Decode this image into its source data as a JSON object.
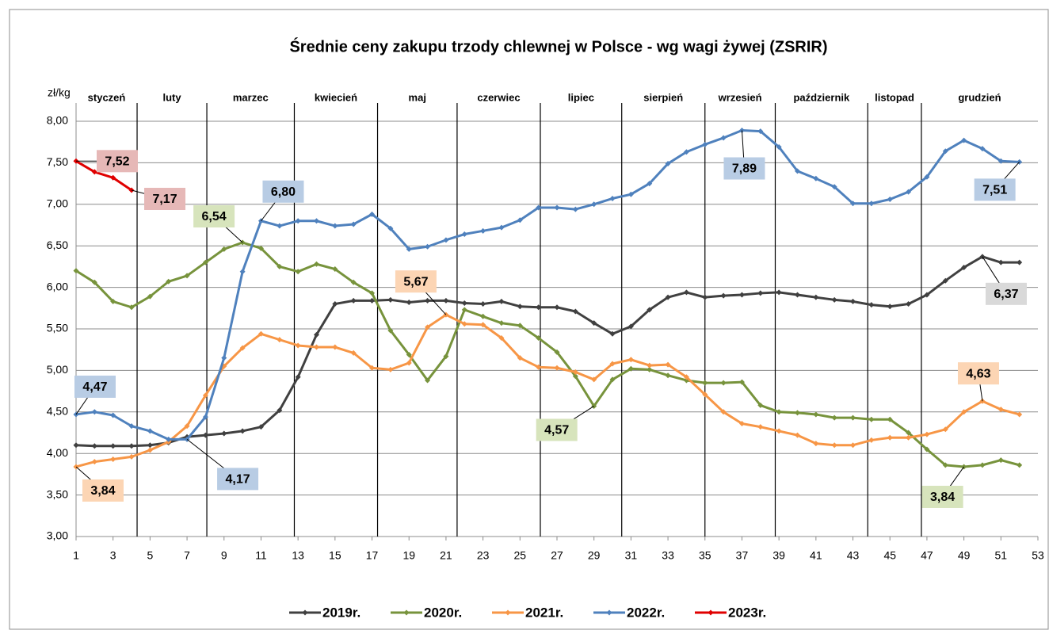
{
  "chart_data": {
    "type": "line",
    "title": "Średnie ceny zakupu trzody chlewnej w Polsce - wg wagi żywej (ZSRIR)",
    "y_label": "zł/kg",
    "months": [
      "styczeń",
      "luty",
      "marzec",
      "kwiecień",
      "maj",
      "czerwiec",
      "lipiec",
      "sierpień",
      "wrzesień",
      "październik",
      "listopad",
      "grudzień"
    ],
    "month_separators": [
      4.3,
      8.07,
      12.8,
      17.3,
      21.6,
      26.1,
      30.5,
      35.0,
      38.8,
      43.8,
      46.7
    ],
    "x": [
      1,
      2,
      3,
      4,
      5,
      6,
      7,
      8,
      9,
      10,
      11,
      12,
      13,
      14,
      15,
      16,
      17,
      18,
      19,
      20,
      21,
      22,
      23,
      24,
      25,
      26,
      27,
      28,
      29,
      30,
      31,
      32,
      33,
      34,
      35,
      36,
      37,
      38,
      39,
      40,
      41,
      42,
      43,
      44,
      45,
      46,
      47,
      48,
      49,
      50,
      51,
      52
    ],
    "xlim": [
      1,
      53
    ],
    "xticks": [
      1,
      3,
      5,
      7,
      9,
      11,
      13,
      15,
      17,
      19,
      21,
      23,
      25,
      27,
      29,
      31,
      33,
      35,
      37,
      39,
      41,
      43,
      45,
      47,
      49,
      51,
      53
    ],
    "ylim": [
      3,
      8
    ],
    "yticks": [
      {
        "value": 3,
        "label": "3,00"
      },
      {
        "value": 3.5,
        "label": "3,50"
      },
      {
        "value": 4,
        "label": "4,00"
      },
      {
        "value": 4.5,
        "label": "4,50"
      },
      {
        "value": 5,
        "label": "5,00"
      },
      {
        "value": 5.5,
        "label": "5,50"
      },
      {
        "value": 6,
        "label": "6,00"
      },
      {
        "value": 6.5,
        "label": "6,50"
      },
      {
        "value": 7,
        "label": "7,00"
      },
      {
        "value": 7.5,
        "label": "7,50"
      },
      {
        "value": 8,
        "label": "8,00"
      }
    ],
    "grid": true,
    "series": [
      {
        "name": "2019r.",
        "color": "#404040",
        "label_color": "#d9d9d9",
        "values": [
          4.1,
          4.09,
          4.09,
          4.09,
          4.1,
          4.13,
          4.2,
          4.22,
          4.24,
          4.27,
          4.32,
          4.52,
          4.92,
          5.43,
          5.8,
          5.84,
          5.84,
          5.85,
          5.82,
          5.84,
          5.84,
          5.81,
          5.8,
          5.83,
          5.77,
          5.76,
          5.76,
          5.71,
          5.57,
          5.44,
          5.53,
          5.73,
          5.88,
          5.94,
          5.88,
          5.9,
          5.91,
          5.93,
          5.94,
          5.91,
          5.88,
          5.85,
          5.83,
          5.79,
          5.77,
          5.8,
          5.91,
          6.08,
          6.24,
          6.37,
          6.3,
          6.3
        ],
        "value_labels": [
          null,
          null,
          null,
          null,
          null,
          null,
          null,
          null,
          null,
          null,
          null,
          null,
          null,
          null,
          null,
          null,
          null,
          null,
          null,
          null,
          null,
          null,
          null,
          null,
          null,
          null,
          null,
          null,
          null,
          null,
          null,
          null,
          null,
          null,
          null,
          null,
          null,
          null,
          null,
          null,
          null,
          null,
          null,
          null,
          null,
          null,
          null,
          null,
          null,
          "6,37",
          null,
          null
        ]
      },
      {
        "name": "2020r.",
        "color": "#77933c",
        "label_color": "#d7e4bc",
        "values": [
          6.2,
          6.06,
          5.83,
          5.76,
          5.89,
          6.07,
          6.14,
          6.3,
          6.46,
          6.54,
          6.47,
          6.25,
          6.19,
          6.28,
          6.22,
          6.06,
          5.93,
          5.48,
          5.19,
          4.88,
          5.17,
          5.73,
          5.65,
          5.57,
          5.54,
          5.39,
          5.22,
          4.93,
          4.57,
          4.89,
          5.02,
          5.01,
          4.94,
          4.88,
          4.85,
          4.85,
          4.86,
          4.58,
          4.5,
          4.49,
          4.47,
          4.43,
          4.43,
          4.41,
          4.41,
          4.25,
          4.05,
          3.86,
          3.84,
          3.86,
          3.92,
          3.86
        ],
        "value_labels": [
          null,
          null,
          null,
          null,
          null,
          null,
          null,
          null,
          null,
          "6,54",
          null,
          null,
          null,
          null,
          null,
          null,
          null,
          null,
          null,
          null,
          null,
          null,
          null,
          null,
          null,
          null,
          null,
          null,
          "4,57",
          null,
          null,
          null,
          null,
          null,
          null,
          null,
          null,
          null,
          null,
          null,
          null,
          null,
          null,
          null,
          null,
          null,
          null,
          null,
          "3,84",
          null,
          null,
          null
        ]
      },
      {
        "name": "2021r.",
        "color": "#f79646",
        "label_color": "#fcd5b4",
        "values": [
          3.84,
          3.9,
          3.93,
          3.96,
          4.04,
          4.14,
          4.33,
          4.7,
          5.05,
          5.27,
          5.44,
          5.37,
          5.3,
          5.28,
          5.28,
          5.21,
          5.03,
          5.01,
          5.09,
          5.52,
          5.67,
          5.56,
          5.55,
          5.39,
          5.15,
          5.04,
          5.03,
          4.98,
          4.89,
          5.08,
          5.13,
          5.06,
          5.07,
          4.92,
          4.71,
          4.5,
          4.36,
          4.32,
          4.27,
          4.22,
          4.12,
          4.1,
          4.1,
          4.16,
          4.19,
          4.19,
          4.23,
          4.29,
          4.5,
          4.63,
          4.53,
          4.47
        ],
        "value_labels": [
          "3,84",
          null,
          null,
          null,
          null,
          null,
          null,
          null,
          null,
          null,
          null,
          null,
          null,
          null,
          null,
          null,
          null,
          null,
          null,
          null,
          "5,67",
          null,
          null,
          null,
          null,
          null,
          null,
          null,
          null,
          null,
          null,
          null,
          null,
          null,
          null,
          null,
          null,
          null,
          null,
          null,
          null,
          null,
          null,
          null,
          null,
          null,
          null,
          null,
          null,
          "4,63",
          null,
          null
        ]
      },
      {
        "name": "2022r.",
        "color": "#4f81bd",
        "label_color": "#b8cce4",
        "values": [
          4.47,
          4.5,
          4.46,
          4.33,
          4.27,
          4.17,
          4.17,
          4.44,
          5.15,
          6.19,
          6.8,
          6.74,
          6.8,
          6.8,
          6.74,
          6.76,
          6.88,
          6.71,
          6.46,
          6.49,
          6.57,
          6.64,
          6.68,
          6.72,
          6.81,
          6.96,
          6.96,
          6.94,
          7.0,
          7.07,
          7.12,
          7.25,
          7.49,
          7.63,
          7.72,
          7.8,
          7.89,
          7.88,
          7.69,
          7.4,
          7.31,
          7.21,
          7.01,
          7.01,
          7.06,
          7.15,
          7.33,
          7.64,
          7.77,
          7.67,
          7.52,
          7.51
        ],
        "value_labels": [
          "4,47",
          null,
          null,
          null,
          null,
          null,
          "4,17",
          null,
          null,
          null,
          "6,80",
          null,
          null,
          null,
          null,
          null,
          null,
          null,
          null,
          null,
          null,
          null,
          null,
          null,
          null,
          null,
          null,
          null,
          null,
          null,
          null,
          null,
          null,
          null,
          null,
          null,
          "7,89",
          null,
          null,
          null,
          null,
          null,
          null,
          null,
          null,
          null,
          null,
          null,
          null,
          null,
          null,
          "7,51"
        ]
      },
      {
        "name": "2023r.",
        "color": "#e00000",
        "label_color": "#e6b8b7",
        "values": [
          7.52,
          7.39,
          7.32,
          7.17,
          null,
          null,
          null,
          null,
          null,
          null,
          null,
          null,
          null,
          null,
          null,
          null,
          null,
          null,
          null,
          null,
          null,
          null,
          null,
          null,
          null,
          null,
          null,
          null,
          null,
          null,
          null,
          null,
          null,
          null,
          null,
          null,
          null,
          null,
          null,
          null,
          null,
          null,
          null,
          null,
          null,
          null,
          null,
          null,
          null,
          null,
          null,
          null
        ],
        "value_labels": [
          "7,52",
          null,
          null,
          "7,17",
          null,
          null,
          null,
          null,
          null,
          null,
          null,
          null,
          null,
          null,
          null,
          null,
          null,
          null,
          null,
          null,
          null,
          null,
          null,
          null,
          null,
          null,
          null,
          null,
          null,
          null,
          null,
          null,
          null,
          null,
          null,
          null,
          null,
          null,
          null,
          null,
          null,
          null,
          null,
          null,
          null,
          null,
          null,
          null,
          null,
          null,
          null,
          null
        ]
      }
    ]
  }
}
